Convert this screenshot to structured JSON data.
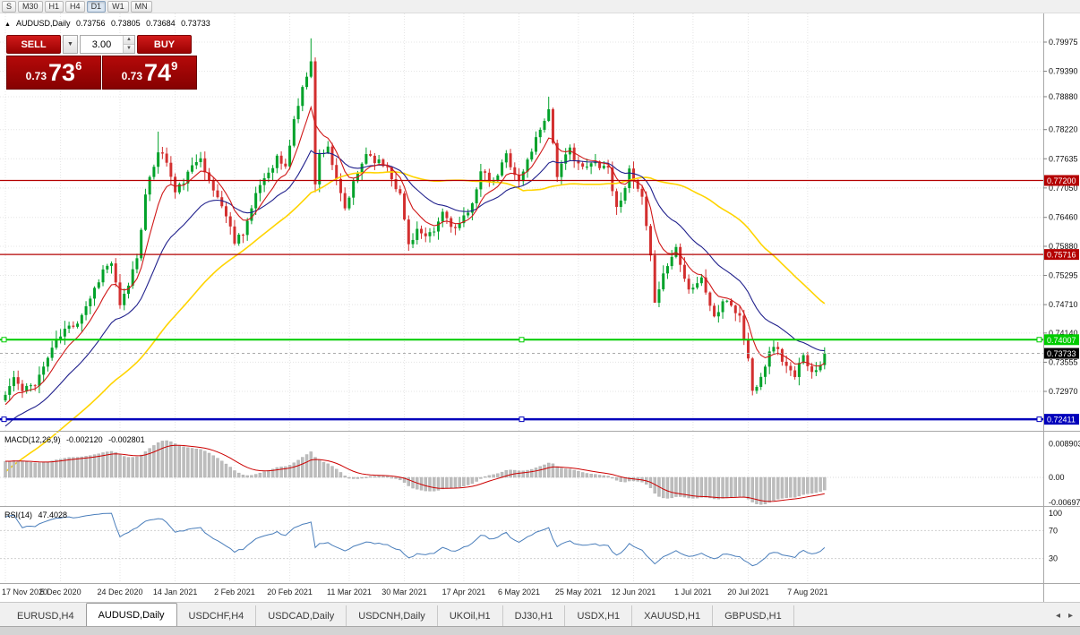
{
  "toolbar": {
    "timeframes": [
      {
        "label": "S"
      },
      {
        "label": "M30"
      },
      {
        "label": "H1"
      },
      {
        "label": "H4"
      },
      {
        "label": "D1"
      },
      {
        "label": "W1"
      },
      {
        "label": "MN"
      }
    ],
    "active": "D1"
  },
  "ohlc_header": {
    "collapse_icon": "▲",
    "symbol": "AUDUSD,Daily",
    "open": "0.73756",
    "high": "0.73805",
    "low": "0.73684",
    "close": "0.73733"
  },
  "trade_panel": {
    "sell_label": "SELL",
    "buy_label": "BUY",
    "volume": "3.00",
    "dropdown_icon": "▼",
    "spinner_up": "▲",
    "spinner_down": "▼",
    "bid": {
      "prefix": "0.73",
      "big": "73",
      "sup": "6"
    },
    "ask": {
      "prefix": "0.73",
      "big": "74",
      "sup": "9"
    }
  },
  "price_axis": {
    "ticks": [
      "0.79975",
      "0.79390",
      "0.78880",
      "0.78220",
      "0.77635",
      "0.77050",
      "0.76460",
      "0.75880",
      "0.75295",
      "0.74710",
      "0.74140",
      "0.73555",
      "0.72970"
    ]
  },
  "levels": [
    {
      "label": "0.77200",
      "value": 0.772,
      "color": "#b40000",
      "width": 1.3,
      "handles": false
    },
    {
      "label": "0.75716",
      "value": 0.75716,
      "color": "#b40000",
      "width": 1.3,
      "handles": false
    },
    {
      "label": "0.74007",
      "value": 0.74007,
      "color": "#00cc00",
      "width": 2,
      "handles": true
    },
    {
      "label": "0.72411",
      "value": 0.72411,
      "color": "#0000bb",
      "width": 2.5,
      "handles": true
    }
  ],
  "current_price": {
    "label": "0.73733",
    "value": 0.73733,
    "color": "#000000"
  },
  "macd_panel": {
    "title": "MACD(12,26,9)",
    "value1": "-0.002120",
    "value2": "-0.002801",
    "axis_ticks": [
      {
        "label": "0.008903",
        "value": 0.008903
      },
      {
        "label": "0.00",
        "value": 0
      },
      {
        "label": "-0.00697",
        "value": -0.00697
      }
    ]
  },
  "rsi_panel": {
    "title": "RSI(14)",
    "value": "47.4028",
    "axis_ticks": [
      {
        "label": "100",
        "value": 100
      },
      {
        "label": "70",
        "value": 70
      },
      {
        "label": "30",
        "value": 30
      }
    ]
  },
  "date_axis": [
    "17 Nov 2020",
    "5 Dec 2020",
    "24 Dec 2020",
    "14 Jan 2021",
    "2 Feb 2021",
    "20 Feb 2021",
    "11 Mar 2021",
    "30 Mar 2021",
    "17 Apr 2021",
    "6 May 2021",
    "25 May 2021",
    "12 Jun 2021",
    "1 Jul 2021",
    "20 Jul 2021",
    "7 Aug 2021"
  ],
  "tabs": {
    "items": [
      "EURUSD,H4",
      "AUDUSD,Daily",
      "USDCHF,H4",
      "USDCAD,Daily",
      "USDCNH,Daily",
      "UKOil,H1",
      "DJ30,H1",
      "USDX,H1",
      "XAUUSD,H1",
      "GBPUSD,H1"
    ],
    "active": "AUDUSD,Daily",
    "scroll_left_icon": "◂",
    "scroll_right_icon": "▸"
  },
  "chart_data": {
    "type": "candlestick",
    "symbol": "AUDUSD",
    "timeframe": "Daily",
    "ylim": [
      0.722,
      0.801
    ],
    "n_candles": 194,
    "close_anchors": [
      [
        0,
        0.729
      ],
      [
        2,
        0.7325
      ],
      [
        4,
        0.7296
      ],
      [
        7,
        0.7315
      ],
      [
        9,
        0.7345
      ],
      [
        11,
        0.7385
      ],
      [
        14,
        0.742
      ],
      [
        17,
        0.7438
      ],
      [
        20,
        0.7485
      ],
      [
        23,
        0.754
      ],
      [
        25,
        0.7555
      ],
      [
        27,
        0.7465
      ],
      [
        29,
        0.7512
      ],
      [
        31,
        0.7568
      ],
      [
        33,
        0.7688
      ],
      [
        36,
        0.7782
      ],
      [
        38,
        0.7758
      ],
      [
        40,
        0.7695
      ],
      [
        43,
        0.7732
      ],
      [
        46,
        0.7772
      ],
      [
        48,
        0.7714
      ],
      [
        51,
        0.7672
      ],
      [
        54,
        0.76
      ],
      [
        56,
        0.7618
      ],
      [
        58,
        0.7662
      ],
      [
        60,
        0.7712
      ],
      [
        62,
        0.7738
      ],
      [
        64,
        0.7766
      ],
      [
        66,
        0.7744
      ],
      [
        68,
        0.7842
      ],
      [
        70,
        0.7902
      ],
      [
        72,
        0.7965
      ],
      [
        73,
        0.771
      ],
      [
        74,
        0.7772
      ],
      [
        76,
        0.779
      ],
      [
        78,
        0.7716
      ],
      [
        80,
        0.7662
      ],
      [
        82,
        0.7712
      ],
      [
        85,
        0.7776
      ],
      [
        88,
        0.7756
      ],
      [
        90,
        0.7748
      ],
      [
        93,
        0.769
      ],
      [
        95,
        0.7592
      ],
      [
        97,
        0.7622
      ],
      [
        99,
        0.7602
      ],
      [
        101,
        0.7616
      ],
      [
        103,
        0.7656
      ],
      [
        106,
        0.7622
      ],
      [
        109,
        0.7652
      ],
      [
        112,
        0.7736
      ],
      [
        115,
        0.7712
      ],
      [
        118,
        0.7772
      ],
      [
        121,
        0.7716
      ],
      [
        124,
        0.7782
      ],
      [
        127,
        0.7846
      ],
      [
        128,
        0.7862
      ],
      [
        130,
        0.7732
      ],
      [
        133,
        0.7782
      ],
      [
        136,
        0.7742
      ],
      [
        139,
        0.7756
      ],
      [
        142,
        0.7746
      ],
      [
        144,
        0.7662
      ],
      [
        147,
        0.7736
      ],
      [
        150,
        0.7682
      ],
      [
        152,
        0.7562
      ],
      [
        153,
        0.7482
      ],
      [
        155,
        0.7532
      ],
      [
        158,
        0.7586
      ],
      [
        161,
        0.7502
      ],
      [
        164,
        0.7522
      ],
      [
        167,
        0.7446
      ],
      [
        170,
        0.7482
      ],
      [
        173,
        0.7446
      ],
      [
        175,
        0.7362
      ],
      [
        176,
        0.7296
      ],
      [
        178,
        0.7332
      ],
      [
        181,
        0.7392
      ],
      [
        184,
        0.7346
      ],
      [
        186,
        0.7322
      ],
      [
        188,
        0.7376
      ],
      [
        190,
        0.7332
      ],
      [
        192,
        0.7356
      ],
      [
        193,
        0.7373
      ]
    ],
    "spikes": [
      {
        "i": 36,
        "high": 0.7818
      },
      {
        "i": 72,
        "high": 0.8005
      },
      {
        "i": 128,
        "high": 0.7888
      },
      {
        "i": 153,
        "low": 0.7478
      },
      {
        "i": 176,
        "low": 0.7289
      }
    ],
    "grid_indices": [
      0,
      13,
      27,
      40,
      54,
      67,
      81,
      94,
      108,
      121,
      135,
      148,
      162,
      175,
      189
    ],
    "moving_averages": [
      {
        "name": "fast",
        "period": 8,
        "color": "#d01818"
      },
      {
        "name": "medium",
        "period": 22,
        "color": "#20208c"
      },
      {
        "name": "slow",
        "period": 50,
        "color": "#ffd400"
      }
    ],
    "macd": {
      "fast": 12,
      "slow": 26,
      "signal": 9,
      "current": -0.00212,
      "current_signal": -0.002801,
      "hist_color": "#bdbdbd",
      "signal_color": "#cc0000",
      "range": [
        -0.00697,
        0.008903
      ]
    },
    "rsi": {
      "period": 14,
      "current": 47.4028,
      "color": "#4a7ebb",
      "levels": [
        30,
        70
      ]
    },
    "up_color": "#00a22a",
    "down_color": "#d32f2f"
  }
}
